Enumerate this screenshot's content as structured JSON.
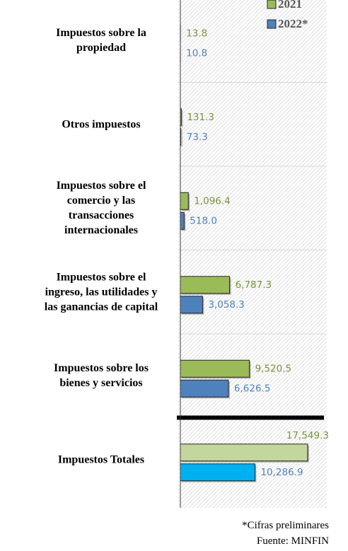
{
  "chart_data": {
    "type": "barh",
    "categories": [
      "Impuestos sobre la\npropiedad",
      "Otros impuestos",
      "Impuestos sobre el\ncomercio y las\ntransacciones\ninternacionales",
      "Impuestos sobre el\ningreso, las utilidades y\nlas ganancias de capital",
      "Impuestos sobre los\nbienes y servicios",
      "Impuestos Totales"
    ],
    "series": [
      {
        "name": "2021",
        "color": "#9bbb59",
        "colors": [
          "#9bbb59",
          "#9bbb59",
          "#9bbb59",
          "#9bbb59",
          "#9bbb59",
          "#c3d69b"
        ],
        "label_color": "#77933c",
        "values": [
          13.8,
          131.3,
          1096.4,
          6787.3,
          9520.5,
          17549.3
        ],
        "value_labels": [
          "13.8",
          "131.3",
          "1,096.4",
          "6,787.3",
          "9,520.5",
          "17,549.3"
        ]
      },
      {
        "name": "2022*",
        "color": "#4f81bd",
        "colors": [
          "#4f81bd",
          "#4f81bd",
          "#4f81bd",
          "#4f81bd",
          "#4f81bd",
          "#00b0f0"
        ],
        "label_color": "#4f81bd",
        "values": [
          10.8,
          73.3,
          518.0,
          3058.3,
          6626.5,
          10286.9
        ],
        "value_labels": [
          "10.8",
          "73.3",
          "518.0",
          "3,058.3",
          "6,626.5",
          "10,286.9"
        ]
      }
    ],
    "xlim": [
      0,
      20000
    ],
    "notes": [
      "*Cifras preliminares",
      "Fuente: MINFIN"
    ]
  }
}
